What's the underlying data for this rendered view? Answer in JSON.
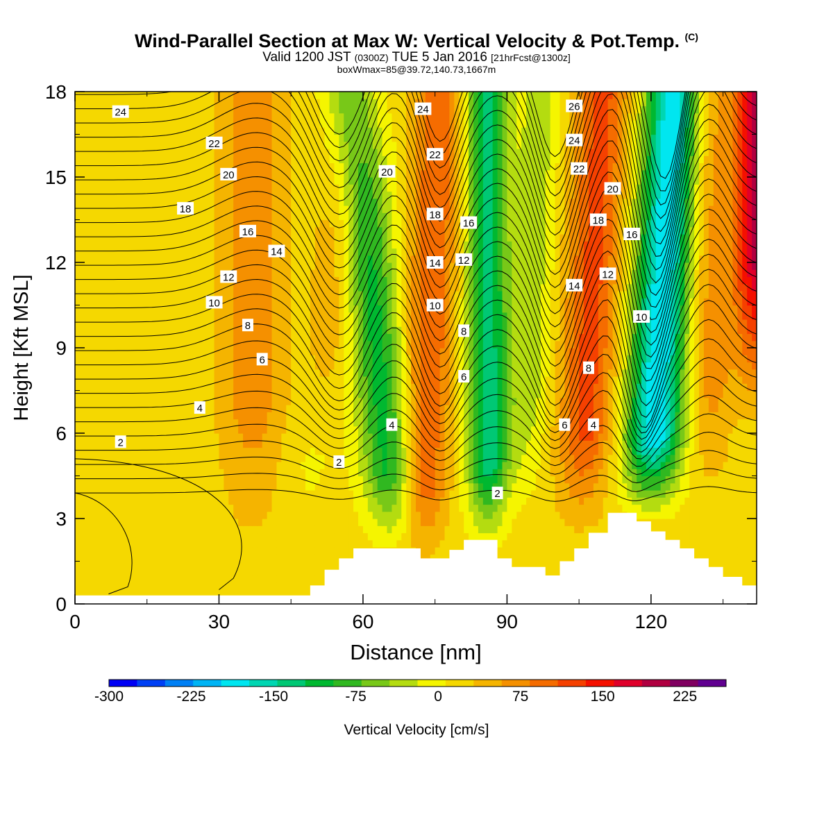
{
  "title": {
    "main": "Wind-Parallel Section at Max W: Vertical Velocity & Pot.Temp.",
    "copyright": "(C)",
    "valid_pre": "Valid 1200 JST",
    "valid_utc": "(0300Z)",
    "valid_date": "TUE 5 Jan 2016",
    "valid_fcst": "[21hrFcst@1300z]",
    "box": "boxWmax=85@39.72,140.73,1667m"
  },
  "chart_data": {
    "type": "heatmap",
    "xlabel": "Distance [nm]",
    "ylabel": "Height [Kft MSL]",
    "xlim": [
      0,
      142
    ],
    "ylim": [
      0,
      18
    ],
    "xticks": [
      0,
      30,
      60,
      90,
      120
    ],
    "yticks": [
      0,
      3,
      6,
      9,
      12,
      15,
      18
    ],
    "colorbar": {
      "label": "Vertical Velocity [cm/s]",
      "min": -300,
      "max": 262.5,
      "step": 25,
      "tick_values": [
        -300,
        -225,
        -150,
        -75,
        0,
        75,
        150,
        225
      ],
      "tick_labels": [
        "-300",
        "-225",
        "-150",
        "-75",
        "0",
        "75",
        "150",
        "225"
      ],
      "colors": [
        "#0000f5",
        "#0040f5",
        "#0080f5",
        "#00b4f5",
        "#00e6f0",
        "#00d6b2",
        "#00c874",
        "#00b830",
        "#30b820",
        "#78c818",
        "#b4dc10",
        "#f5f500",
        "#f5d800",
        "#f5b400",
        "#f59000",
        "#f56c00",
        "#f54000",
        "#f51000",
        "#e0002a",
        "#b00040",
        "#800060",
        "#600090"
      ]
    },
    "terrain": {
      "x": [
        0,
        49,
        49,
        52,
        52,
        55,
        55,
        58,
        58,
        72,
        72,
        78,
        78,
        81,
        81,
        88,
        88,
        91,
        91,
        98,
        98,
        101,
        101,
        104,
        104,
        107,
        107,
        111,
        111,
        117,
        117,
        120,
        120,
        123,
        123,
        126,
        126,
        129,
        129,
        132,
        132,
        135,
        135,
        139,
        139,
        142
      ],
      "y": [
        0.3,
        0.3,
        0.65,
        0.65,
        1.2,
        1.2,
        1.6,
        1.6,
        1.95,
        1.95,
        1.6,
        1.6,
        1.9,
        1.9,
        2.25,
        2.25,
        1.6,
        1.6,
        1.3,
        1.3,
        1.0,
        1.0,
        1.5,
        1.5,
        1.95,
        1.95,
        2.5,
        2.5,
        3.2,
        3.2,
        2.9,
        2.9,
        2.55,
        2.55,
        2.25,
        2.25,
        1.95,
        1.95,
        1.6,
        1.6,
        1.3,
        1.3,
        0.95,
        0.95,
        0.65,
        0.65
      ]
    },
    "contour_labels": [
      {
        "text": "24",
        "x": 9.5,
        "y": 17.3
      },
      {
        "text": "22",
        "x": 29,
        "y": 16.2
      },
      {
        "text": "20",
        "x": 32,
        "y": 15.1
      },
      {
        "text": "18",
        "x": 23,
        "y": 13.9
      },
      {
        "text": "16",
        "x": 36,
        "y": 13.1
      },
      {
        "text": "14",
        "x": 42,
        "y": 12.4
      },
      {
        "text": "12",
        "x": 32,
        "y": 11.5
      },
      {
        "text": "10",
        "x": 29,
        "y": 10.6
      },
      {
        "text": "8",
        "x": 36,
        "y": 9.8
      },
      {
        "text": "6",
        "x": 39,
        "y": 8.6
      },
      {
        "text": "4",
        "x": 26,
        "y": 6.9
      },
      {
        "text": "2",
        "x": 9.5,
        "y": 5.7
      },
      {
        "text": "2",
        "x": 55,
        "y": 5.0
      },
      {
        "text": "4",
        "x": 66,
        "y": 6.3
      },
      {
        "text": "20",
        "x": 65,
        "y": 15.2
      },
      {
        "text": "24",
        "x": 72.5,
        "y": 17.4
      },
      {
        "text": "22",
        "x": 75,
        "y": 15.8
      },
      {
        "text": "18",
        "x": 75,
        "y": 13.7
      },
      {
        "text": "14",
        "x": 75,
        "y": 12.0
      },
      {
        "text": "10",
        "x": 75,
        "y": 10.5
      },
      {
        "text": "16",
        "x": 82,
        "y": 13.4
      },
      {
        "text": "12",
        "x": 81,
        "y": 12.1
      },
      {
        "text": "8",
        "x": 81,
        "y": 9.6
      },
      {
        "text": "6",
        "x": 81,
        "y": 8.0
      },
      {
        "text": "2",
        "x": 88,
        "y": 3.9
      },
      {
        "text": "26",
        "x": 104,
        "y": 17.5
      },
      {
        "text": "24",
        "x": 104,
        "y": 16.3
      },
      {
        "text": "22",
        "x": 105,
        "y": 15.3
      },
      {
        "text": "20",
        "x": 112,
        "y": 14.6
      },
      {
        "text": "18",
        "x": 109,
        "y": 13.5
      },
      {
        "text": "16",
        "x": 116,
        "y": 13.0
      },
      {
        "text": "14",
        "x": 104,
        "y": 11.2
      },
      {
        "text": "12",
        "x": 111,
        "y": 11.6
      },
      {
        "text": "10",
        "x": 118,
        "y": 10.1
      },
      {
        "text": "8",
        "x": 107,
        "y": 8.3
      },
      {
        "text": "6",
        "x": 102,
        "y": 6.3
      },
      {
        "text": "4",
        "x": 108,
        "y": 6.3
      }
    ]
  }
}
